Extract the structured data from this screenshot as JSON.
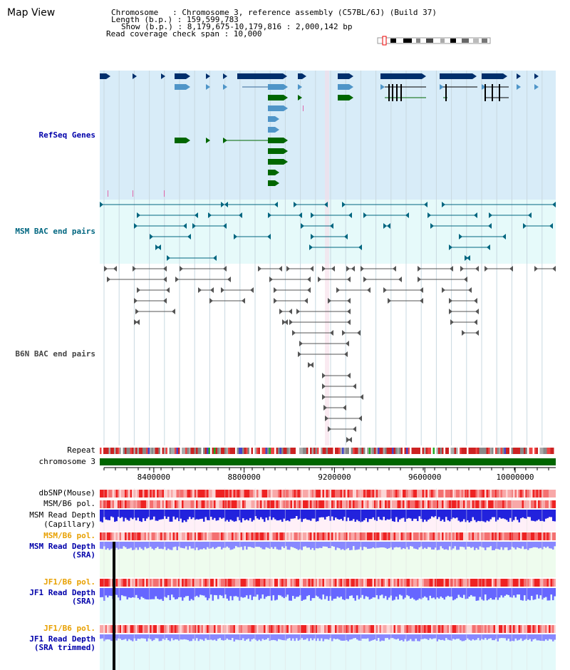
{
  "title": "Map View",
  "header": {
    "chromosome_label": "Chromosome   : Chromosome 3, reference assembly (C57BL/6J) (Build 37)",
    "length_label": "Length (b.p.) : 159,599,783",
    "show_label": "Show (b.p.) : 8,179,675-10,179,816 : 2,000,142 bp",
    "coverage_label": "Read coverage check span : 10,000"
  },
  "tracks": {
    "refseq": "RefSeq Genes",
    "msm_bac": "MSM BAC end pairs",
    "b6n_bac": "B6N BAC end pairs",
    "repeat": "Repeat",
    "chromosome": "chromosome 3",
    "dbsnp": "dbSNP(Mouse)",
    "msm_pol1": "MSM/B6 pol.",
    "msm_depth_cap_1": "MSM Read Depth",
    "msm_depth_cap_2": "(Capillary)",
    "msm_pol2": "MSM/B6 pol.",
    "msm_depth_sra_1": "MSM Read Depth",
    "msm_depth_sra_2": "(SRA)",
    "jf1_pol1": "JF1/B6 pol.",
    "jf1_depth_1": "JF1 Read Depth",
    "jf1_depth_2": "(SRA)",
    "jf1_pol2": "JF1/B6 pol.",
    "jf1_trim_1": "JF1 Read Depth",
    "jf1_trim_2": "(SRA trimmed)"
  },
  "axis": {
    "ticks": [
      "8400000",
      "8800000",
      "9200000",
      "9600000",
      "10000000"
    ],
    "tick_values": [
      8400000,
      8800000,
      9200000,
      9600000,
      10000000
    ],
    "range": [
      8179675,
      10179816
    ]
  },
  "colors": {
    "refseq_dark": "#002f6c",
    "refseq_mid": "#4f95c8",
    "refseq_green": "#006600",
    "msm_bac": "#006680",
    "b6n_bac": "#555555",
    "depth_blue": "#0000ee",
    "depth_light": "#7777ff",
    "pol_red": "#ee2222"
  }
}
